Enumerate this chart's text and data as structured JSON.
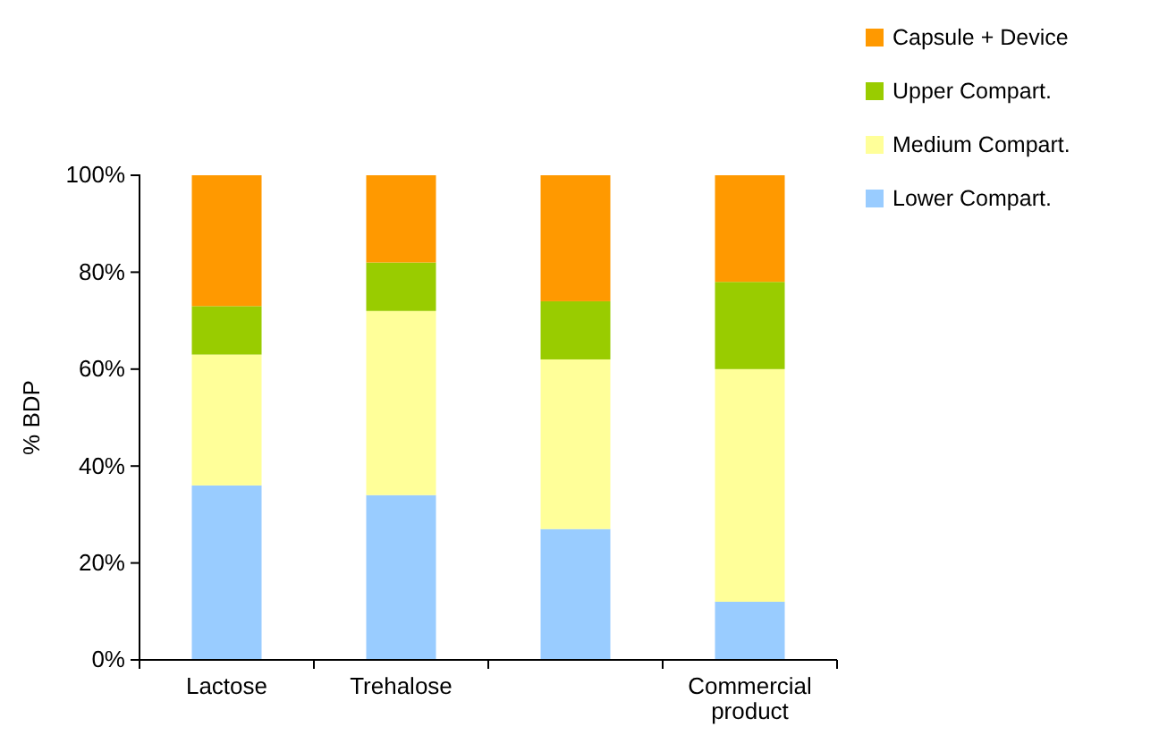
{
  "chart_data": {
    "type": "bar",
    "stacked": true,
    "ylabel": "% BDP",
    "categories": [
      "Lactose",
      "Trehalose",
      null,
      "Commercial product"
    ],
    "series": [
      {
        "name": "Lower Compart.",
        "color": "#99ccff",
        "values": [
          36,
          34,
          27,
          12
        ]
      },
      {
        "name": "Medium Compart.",
        "color": "#ffff99",
        "values": [
          27,
          38,
          35,
          48
        ]
      },
      {
        "name": "Upper Compart.",
        "color": "#99cc00",
        "values": [
          10,
          10,
          12,
          18
        ]
      },
      {
        "name": "Capsule + Device",
        "color": "#ff9900",
        "values": [
          27,
          18,
          26,
          22
        ]
      }
    ],
    "ylim": [
      0,
      100
    ],
    "yticks": [
      {
        "value": 0,
        "label": "0%"
      },
      {
        "value": 20,
        "label": "20%"
      },
      {
        "value": 40,
        "label": "40%"
      },
      {
        "value": 60,
        "label": "60%"
      },
      {
        "value": 80,
        "label": "80%"
      },
      {
        "value": 100,
        "label": "100%"
      }
    ],
    "grid": false,
    "legend": "top right"
  }
}
